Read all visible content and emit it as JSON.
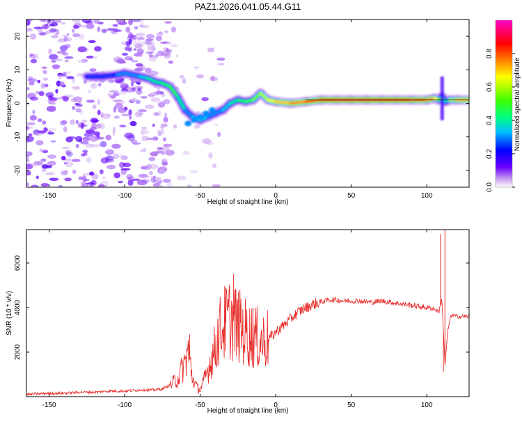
{
  "title": "PAZ1.2026.041.05.44.G11",
  "chart_data": [
    {
      "type": "heatmap",
      "name": "spectrogram",
      "title": "PAZ1.2026.041.05.44.G11",
      "xlabel": "Height of straight line (km)",
      "ylabel": "Frequency (Hz)",
      "xlim": [
        -165,
        128
      ],
      "ylim": [
        -25,
        25
      ],
      "xticks": [
        -150,
        -100,
        -50,
        0,
        50,
        100
      ],
      "yticks": [
        -20,
        -10,
        0,
        10,
        20
      ],
      "colorbar": {
        "label": "Normalized spectral amplitude",
        "range": [
          0,
          1
        ],
        "ticks": [
          "0.0",
          "0.2",
          "0.4",
          "0.6",
          "0.8"
        ],
        "tick_values": [
          0,
          0.2,
          0.4,
          0.6,
          0.8
        ]
      },
      "ridge": {
        "x": [
          -125,
          -115,
          -105,
          -100,
          -95,
          -90,
          -85,
          -80,
          -75,
          -70,
          -65,
          -60,
          -55,
          -50,
          -45,
          -40,
          -35,
          -30,
          -25,
          -20,
          -15,
          -10,
          -5,
          0,
          10,
          20,
          30,
          40,
          50,
          60,
          70,
          80,
          90,
          100,
          105,
          108,
          110,
          112,
          115,
          120,
          128
        ],
        "y": [
          8,
          8,
          8.5,
          9,
          8.5,
          8,
          7.5,
          6.5,
          6,
          5,
          2,
          -2,
          -4,
          -5,
          -4,
          -3,
          -2,
          0,
          1,
          0.5,
          1,
          3,
          1,
          0.5,
          0,
          0.5,
          1,
          1,
          1,
          1,
          1,
          1,
          1,
          1,
          1.5,
          1,
          2,
          0.5,
          1,
          1,
          1
        ],
        "amplitude": [
          0.25,
          0.25,
          0.3,
          0.3,
          0.3,
          0.35,
          0.4,
          0.4,
          0.45,
          0.5,
          0.4,
          0.3,
          0.35,
          0.35,
          0.3,
          0.3,
          0.35,
          0.4,
          0.45,
          0.5,
          0.55,
          0.6,
          0.65,
          0.7,
          0.75,
          0.8,
          0.85,
          0.9,
          0.9,
          0.9,
          0.85,
          0.85,
          0.8,
          0.75,
          0.65,
          0.5,
          0.4,
          0.35,
          0.6,
          0.7,
          0.7
        ]
      }
    },
    {
      "type": "line",
      "name": "snr",
      "xlabel": "Height of straight line (km)",
      "ylabel": "SNR (10 * v/v)",
      "xlim": [
        -165,
        128
      ],
      "ylim": [
        0,
        7500
      ],
      "xticks": [
        -150,
        -100,
        -50,
        0,
        50,
        100
      ],
      "yticks": [
        2000,
        4000,
        6000
      ],
      "color": "#e8302d",
      "series": [
        {
          "name": "SNR",
          "x": [
            -165,
            -150,
            -140,
            -130,
            -120,
            -110,
            -100,
            -90,
            -85,
            -80,
            -75,
            -70,
            -65,
            -60,
            -58,
            -55,
            -52,
            -50,
            -48,
            -45,
            -42,
            -40,
            -38,
            -35,
            -32,
            -30,
            -28,
            -25,
            -22,
            -20,
            -18,
            -15,
            -12,
            -10,
            -8,
            -5,
            -2,
            0,
            5,
            10,
            15,
            20,
            25,
            30,
            35,
            40,
            45,
            50,
            55,
            60,
            65,
            70,
            75,
            80,
            85,
            90,
            95,
            100,
            105,
            108,
            110,
            112,
            114,
            116,
            118,
            120,
            125,
            128
          ],
          "y": [
            100,
            150,
            150,
            200,
            200,
            250,
            250,
            300,
            300,
            300,
            350,
            500,
            800,
            1500,
            2100,
            800,
            400,
            300,
            600,
            1200,
            1800,
            2200,
            2800,
            3200,
            3400,
            3500,
            3400,
            3200,
            3000,
            2900,
            2800,
            2700,
            2600,
            2500,
            2550,
            2600,
            2750,
            2900,
            3200,
            3500,
            3800,
            4000,
            4150,
            4250,
            4350,
            4350,
            4300,
            4300,
            4300,
            4250,
            4250,
            4300,
            4250,
            4200,
            4150,
            4100,
            4050,
            4000,
            3950,
            3800,
            4400,
            1400,
            3000,
            3650,
            3650,
            3600,
            3600,
            3600
          ],
          "spikes": [
            {
              "x": -57,
              "y": 2800
            },
            {
              "x": -33,
              "y": 4900
            },
            {
              "x": -28,
              "y": 5500
            },
            {
              "x": -23,
              "y": 4400
            },
            {
              "x": -15,
              "y": 4000
            },
            {
              "x": 109,
              "y": 7300
            },
            {
              "x": 112,
              "y": 7600
            },
            {
              "x": 111,
              "y": 1100
            }
          ]
        }
      ]
    }
  ]
}
